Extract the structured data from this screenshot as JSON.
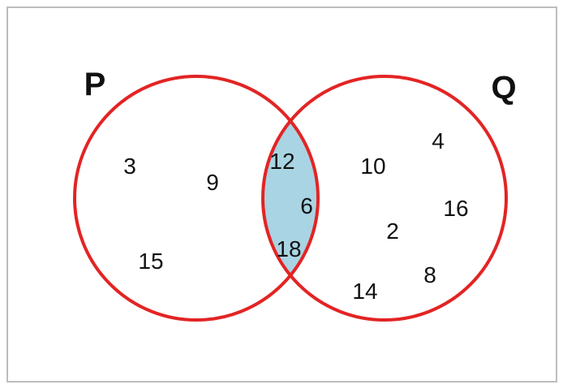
{
  "sets": {
    "left": {
      "label": "P",
      "only_elements": [
        "3",
        "9",
        "15"
      ]
    },
    "right": {
      "label": "Q",
      "only_elements": [
        "10",
        "4",
        "16",
        "2",
        "8",
        "14"
      ]
    },
    "intersection": {
      "elements": [
        "12",
        "6",
        "18"
      ]
    }
  },
  "colors": {
    "circle_stroke": "#e32424",
    "intersection_fill": "#a9d4e3",
    "frame_stroke": "#bdbdbd",
    "text": "#111111"
  }
}
